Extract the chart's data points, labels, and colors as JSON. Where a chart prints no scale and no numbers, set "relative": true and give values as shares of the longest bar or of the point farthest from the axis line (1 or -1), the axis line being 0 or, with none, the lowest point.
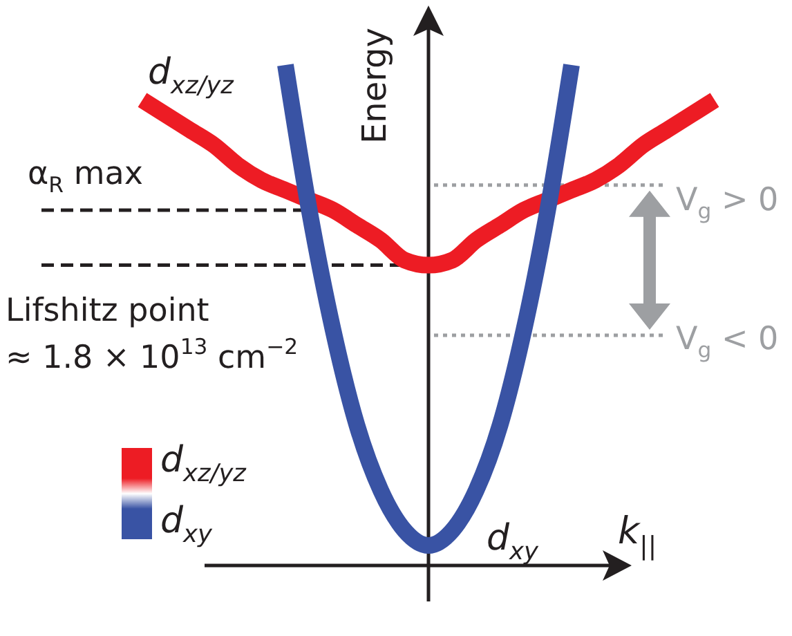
{
  "chart_data": {
    "type": "line",
    "relative": true,
    "categories": [
      null,
      null,
      null,
      null,
      null,
      null,
      null,
      null,
      null,
      null,
      null,
      null,
      null,
      null,
      null,
      null,
      null,
      null,
      null,
      null,
      null,
      null,
      null,
      null,
      null
    ],
    "series": [
      {
        "name": "d$_{xz/yz}$",
        "color": "#ed1c24",
        "values": [
          0.93,
          0.9,
          0.87,
          0.84,
          0.8,
          0.77,
          0.75,
          0.73,
          0.71,
          0.68,
          0.65,
          0.61,
          0.6,
          0.61,
          0.65,
          0.68,
          0.71,
          0.73,
          0.75,
          0.77,
          0.8,
          0.84,
          0.87,
          0.9,
          0.93
        ]
      },
      {
        "name": "d$_{xy}$",
        "color": "#3953a4",
        "values": [
          null,
          null,
          null,
          null,
          null,
          null,
          1,
          0.71,
          0.47,
          0.28,
          0.15,
          0.07,
          0.04,
          0.07,
          0.15,
          0.28,
          0.47,
          0.71,
          1,
          null,
          null,
          null,
          null,
          null,
          null
        ]
      }
    ],
    "xlabel": "k$_{||}$",
    "ylabel": "Energy",
    "ref_lines": [
      {
        "axis": "y",
        "value": 0.71,
        "label": "α$_{R}$ max",
        "color": "#231f20",
        "line_style": "dashed"
      },
      {
        "axis": "y",
        "value": 0.6,
        "label": "Lifshitz point\n≈ 1.8 × 10$^{13}$ cm$^{−2}$",
        "color": "#231f20",
        "line_style": "dashed"
      },
      {
        "axis": "y",
        "value": 0.76,
        "label": "V$_{g}$ > 0",
        "color": "#9d9fa2",
        "line_style": "dotted"
      },
      {
        "axis": "y",
        "value": 0.46,
        "label": "V$_{g}$ < 0",
        "color": "#9d9fa2",
        "line_style": "dotted"
      }
    ],
    "legend": "bottom left"
  }
}
